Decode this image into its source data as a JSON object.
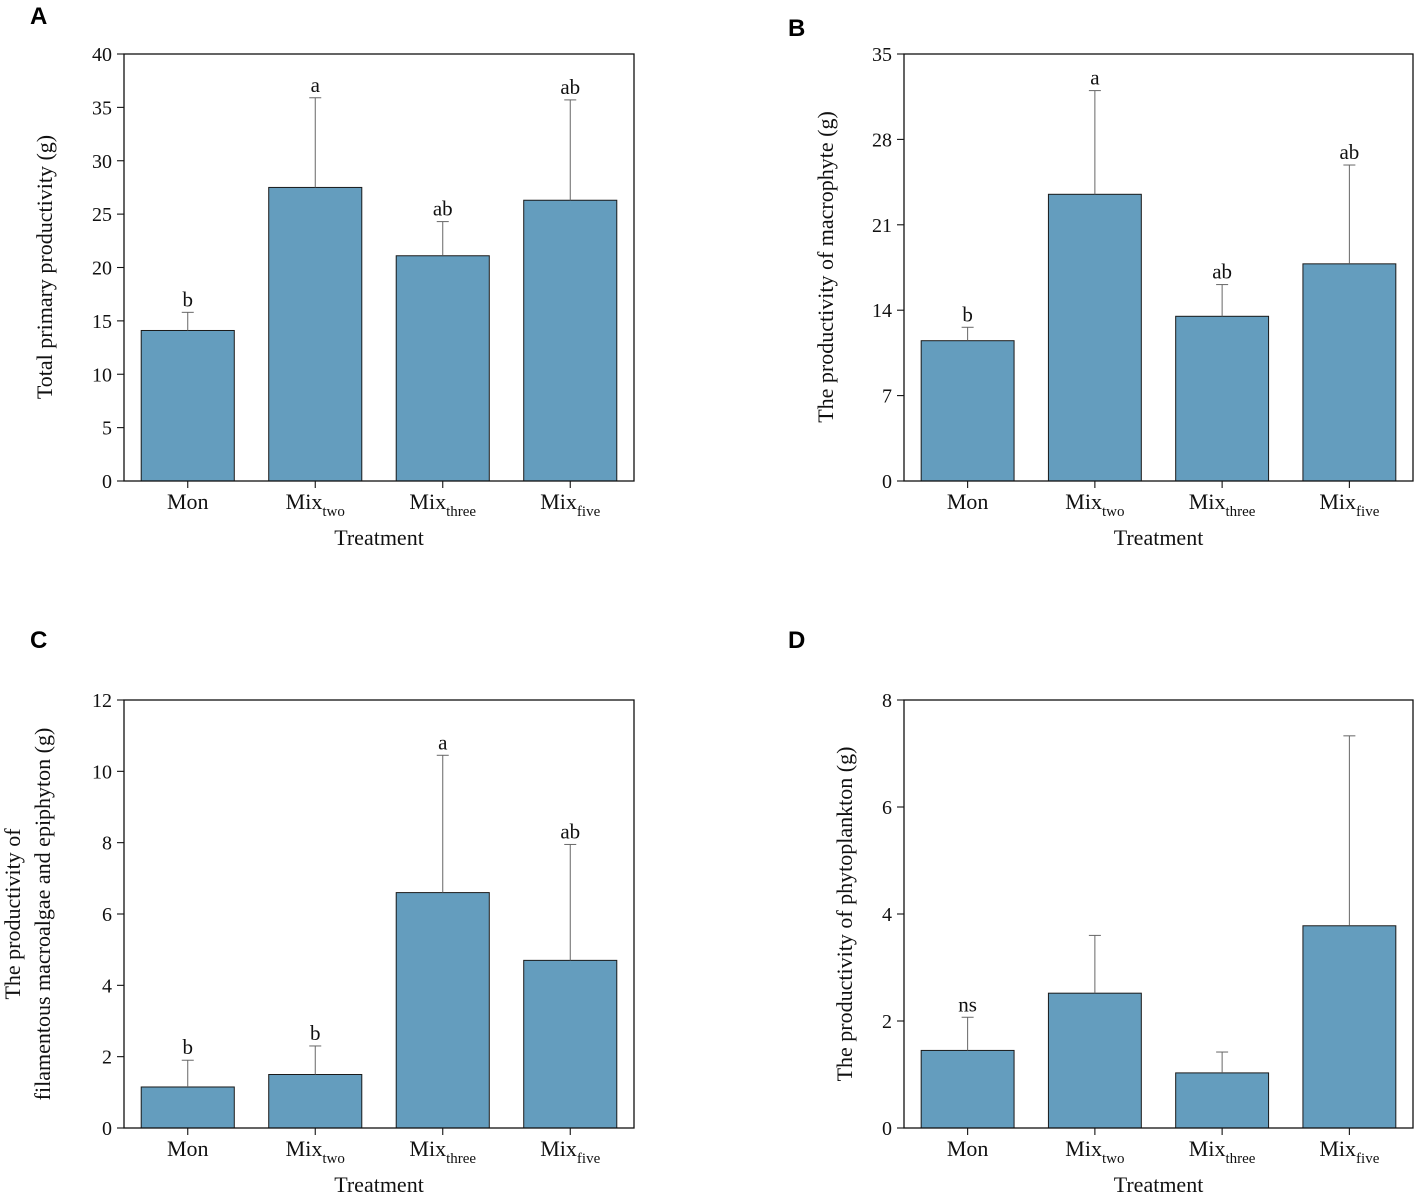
{
  "chart_data": [
    {
      "type": "bar",
      "panel": "A",
      "title": "",
      "xlabel": "Treatment",
      "ylabel": "Total primary productivity (g)",
      "ylim": [
        0,
        40
      ],
      "yticks": [
        0,
        5,
        10,
        15,
        20,
        25,
        30,
        35,
        40
      ],
      "categories": [
        {
          "base": "Mon",
          "sub": ""
        },
        {
          "base": "Mix",
          "sub": "two"
        },
        {
          "base": "Mix",
          "sub": "three"
        },
        {
          "base": "Mix",
          "sub": "five"
        }
      ],
      "values": [
        14.1,
        27.5,
        21.1,
        26.3
      ],
      "error_upper": [
        15.8,
        35.9,
        24.3,
        35.7
      ],
      "labels": [
        "b",
        "a",
        "ab",
        "ab"
      ]
    },
    {
      "type": "bar",
      "panel": "B",
      "title": "",
      "xlabel": "Treatment",
      "ylabel": "The productivity of macrophyte (g)",
      "ylim": [
        0,
        35
      ],
      "yticks": [
        0,
        7,
        14,
        21,
        28,
        35
      ],
      "categories": [
        {
          "base": "Mon",
          "sub": ""
        },
        {
          "base": "Mix",
          "sub": "two"
        },
        {
          "base": "Mix",
          "sub": "three"
        },
        {
          "base": "Mix",
          "sub": "five"
        }
      ],
      "values": [
        11.5,
        23.5,
        13.5,
        17.8
      ],
      "error_upper": [
        12.6,
        32.0,
        16.1,
        25.9
      ],
      "labels": [
        "b",
        "a",
        "ab",
        "ab"
      ]
    },
    {
      "type": "bar",
      "panel": "C",
      "title": "",
      "xlabel": "Treatment",
      "ylabel": [
        "The productivity of",
        "filamentous macroalgae and epiphyton (g)"
      ],
      "ylim": [
        0,
        12
      ],
      "yticks": [
        0,
        2,
        4,
        6,
        8,
        10,
        12
      ],
      "categories": [
        {
          "base": "Mon",
          "sub": ""
        },
        {
          "base": "Mix",
          "sub": "two"
        },
        {
          "base": "Mix",
          "sub": "three"
        },
        {
          "base": "Mix",
          "sub": "five"
        }
      ],
      "values": [
        1.15,
        1.5,
        6.6,
        4.7
      ],
      "error_upper": [
        1.9,
        2.3,
        10.45,
        7.95
      ],
      "labels": [
        "b",
        "b",
        "a",
        "ab"
      ]
    },
    {
      "type": "bar",
      "panel": "D",
      "title": "",
      "xlabel": "Treatment",
      "ylabel": "The productivity of phytoplankton (g)",
      "ylim": [
        0,
        8
      ],
      "yticks": [
        0,
        2,
        4,
        6,
        8
      ],
      "categories": [
        {
          "base": "Mon",
          "sub": ""
        },
        {
          "base": "Mix",
          "sub": "two"
        },
        {
          "base": "Mix",
          "sub": "three"
        },
        {
          "base": "Mix",
          "sub": "five"
        }
      ],
      "values": [
        1.45,
        2.52,
        1.03,
        3.78
      ],
      "error_upper": [
        2.07,
        3.6,
        1.42,
        7.33
      ],
      "labels": [
        "ns",
        "",
        "",
        ""
      ]
    }
  ],
  "colors": {
    "bar_fill": "#649dbe",
    "bar_stroke": "#1a1a1a",
    "error_bar": "#666666"
  }
}
